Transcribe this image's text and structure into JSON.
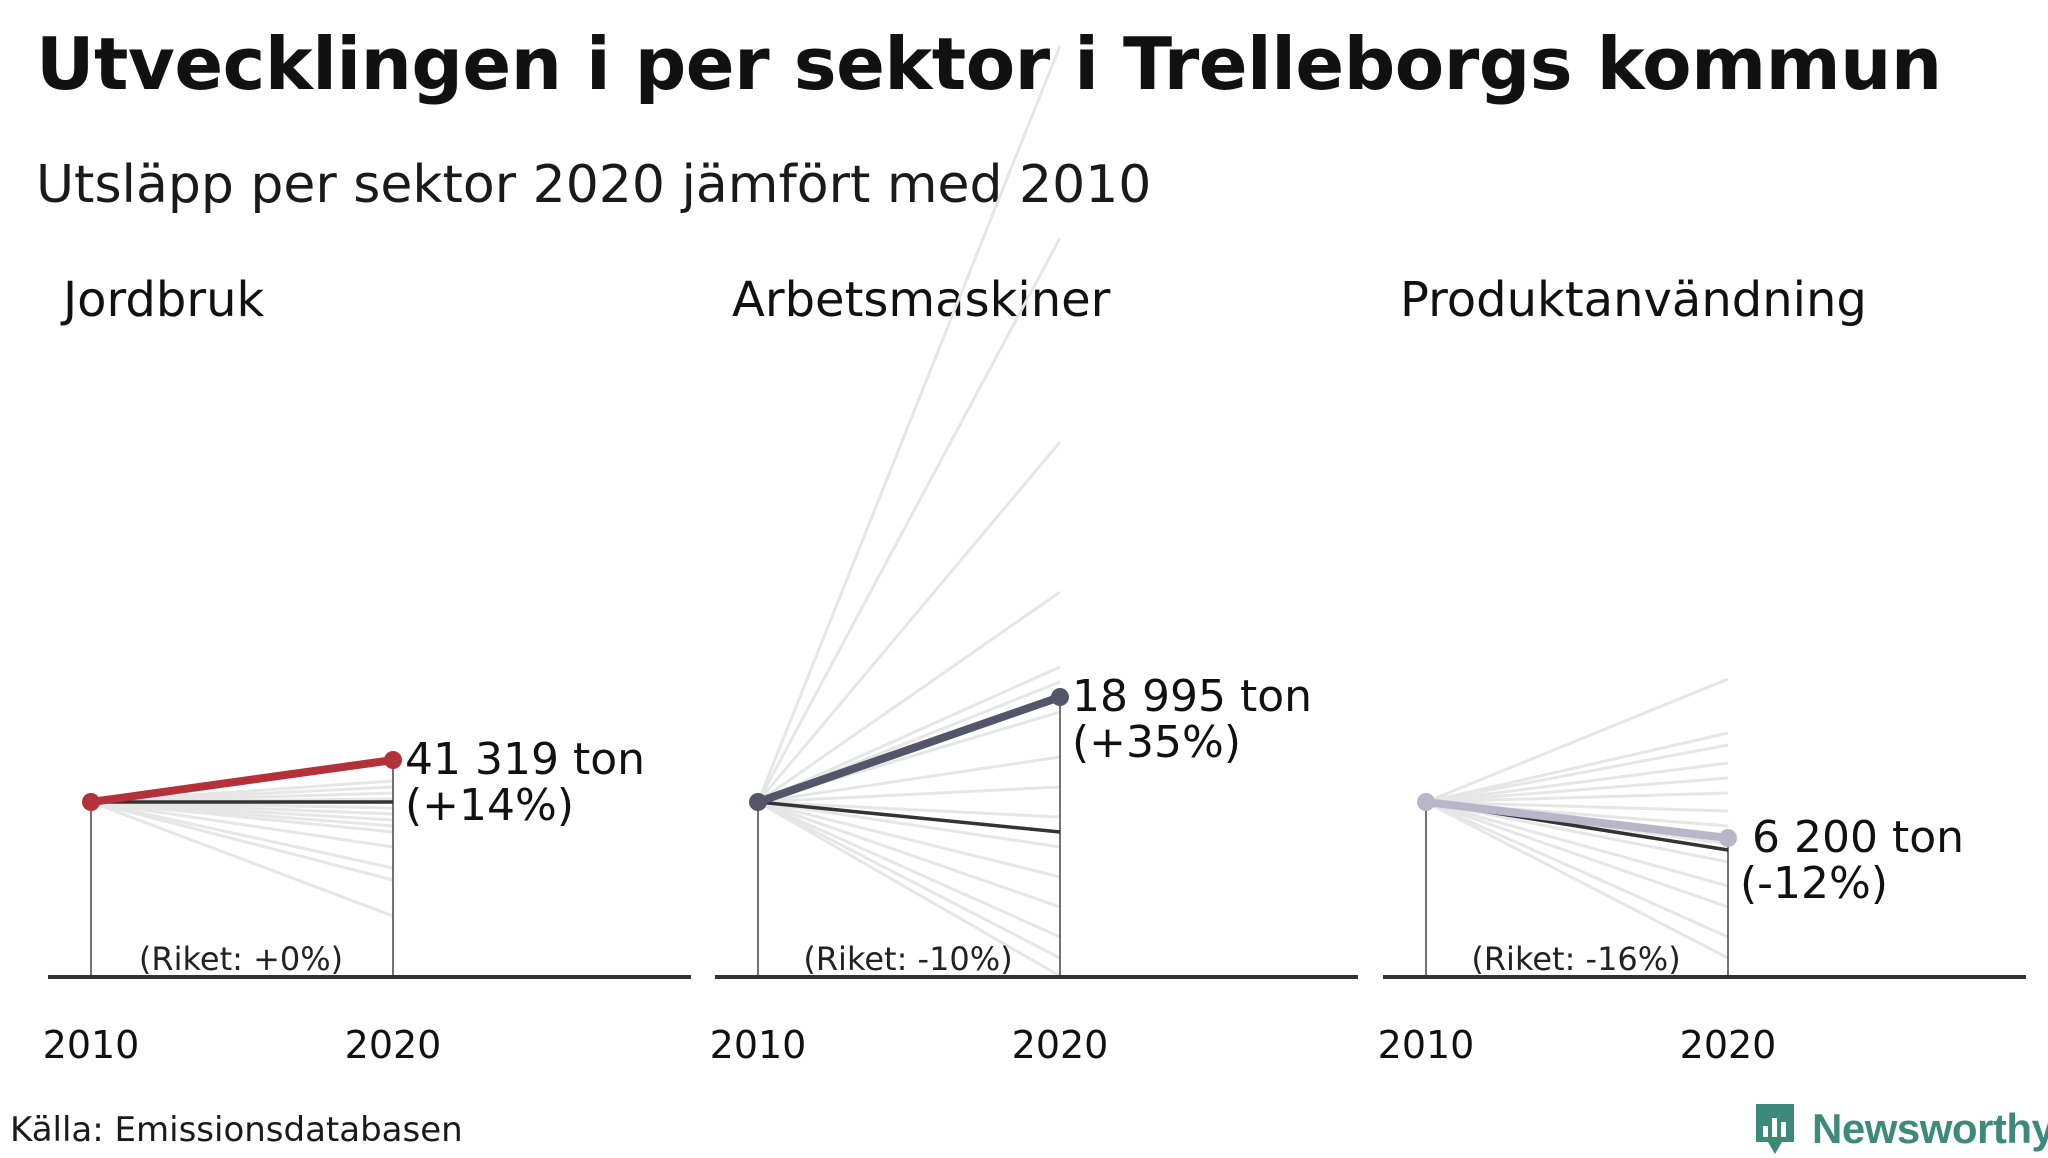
{
  "title": "Utvecklingen i per sektor i Trelleborgs kommun",
  "subtitle": "Utsläpp per sektor 2020 jämfört med 2010",
  "source": "Källa: Emissionsdatabasen",
  "brand": {
    "name": "Newsworthy",
    "color": "#3d8a7b"
  },
  "colors": {
    "background_lines": "#e6e6e6",
    "national_line": "#333333",
    "axis": "#333333"
  },
  "chart_data": [
    {
      "type": "line",
      "title": "Jordbruk",
      "x": [
        "2010",
        "2020"
      ],
      "x_ticks": [
        "2010",
        "2020"
      ],
      "value_2020": "41 319 ton",
      "change_label": "(+14%)",
      "change_pct": 14,
      "national_label": "(Riket: +0%)",
      "national_change_pct": 0,
      "color": "#b5313a",
      "other_municipalities_pct": [
        7,
        5,
        3,
        1,
        -2,
        -4,
        -6,
        -10,
        -15,
        -22,
        -38,
        -26,
        -8
      ]
    },
    {
      "type": "line",
      "title": "Arbetsmaskiner",
      "x": [
        "2010",
        "2020"
      ],
      "x_ticks": [
        "2010",
        "2020"
      ],
      "value_2020": "18 995 ton",
      "change_label": "(+35%)",
      "change_pct": 35,
      "national_label": "(Riket: -10%)",
      "national_change_pct": -10,
      "color": "#55556a",
      "other_municipalities_pct": [
        252,
        188,
        120,
        70,
        45,
        40,
        30,
        15,
        5,
        -5,
        -15,
        -25,
        -35,
        -45,
        -52,
        -58
      ]
    },
    {
      "type": "line",
      "title": "Produktanvändning",
      "x": [
        "2010",
        "2020"
      ],
      "x_ticks": [
        "2010",
        "2020"
      ],
      "value_2020": "6 200 ton",
      "change_label": "(-12%)",
      "change_pct": -12,
      "national_label": "(Riket: -16%)",
      "national_change_pct": -16,
      "color": "#b8b6c8",
      "other_municipalities_pct": [
        41,
        23,
        19,
        13,
        8,
        3,
        -3,
        -8,
        -14,
        -20,
        -28,
        -35,
        -45,
        -52
      ]
    }
  ]
}
